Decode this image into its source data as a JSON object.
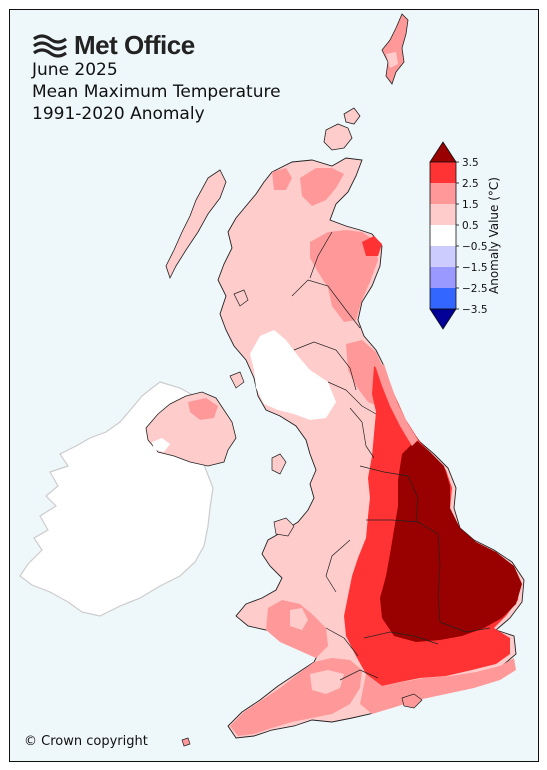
{
  "brand": {
    "name": "Met Office",
    "logo_icon": "met-office-wave-icon"
  },
  "title": {
    "line1": "June 2025",
    "line2": "Mean Maximum Temperature",
    "line3": "1991-2020 Anomaly"
  },
  "copyright": "© Crown copyright",
  "legend": {
    "label": "Anomaly Value (°C)",
    "ticks": [
      "3.5",
      "2.5",
      "1.5",
      "0.5",
      "−0.5",
      "−1.5",
      "−2.5",
      "−3.5"
    ],
    "bins": [
      {
        "from": 2.5,
        "to": 3.5,
        "color": "#ff3333"
      },
      {
        "from": 1.5,
        "to": 2.5,
        "color": "#ff9999"
      },
      {
        "from": 0.5,
        "to": 1.5,
        "color": "#ffcccc"
      },
      {
        "from": -0.5,
        "to": 0.5,
        "color": "#ffffff"
      },
      {
        "from": -1.5,
        "to": -0.5,
        "color": "#ccccff"
      },
      {
        "from": -2.5,
        "to": -1.5,
        "color": "#9999ff"
      },
      {
        "from": -3.5,
        "to": -2.5,
        "color": "#3366ff"
      }
    ],
    "over_color": "#990000",
    "under_color": "#000099"
  },
  "colors": {
    "sea": "#eef7fa",
    "ireland": "#ffffff",
    "ireland_outline": "#cccccc",
    "bin_gt_3_5": "#990000",
    "bin_2_5_3_5": "#ff3333",
    "bin_1_5_2_5": "#ff9999",
    "bin_0_5_1_5": "#ffcccc",
    "bin_neutral": "#ffffff"
  }
}
